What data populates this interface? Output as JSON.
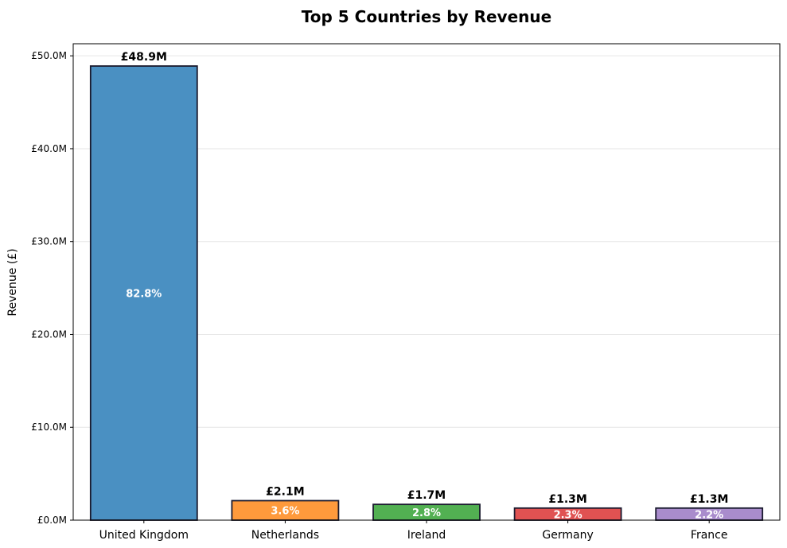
{
  "chart_data": {
    "type": "bar",
    "title": "Top 5 Countries by Revenue",
    "xlabel": "",
    "ylabel": "Revenue (£)",
    "categories": [
      "United Kingdom",
      "Netherlands",
      "Ireland",
      "Germany",
      "France"
    ],
    "values": [
      48.9,
      2.1,
      1.7,
      1.3,
      1.3
    ],
    "value_labels": [
      "£48.9M",
      "£2.1M",
      "£1.7M",
      "£1.3M",
      "£1.3M"
    ],
    "percent_labels": [
      "82.8%",
      "3.6%",
      "2.8%",
      "2.3%",
      "2.2%"
    ],
    "colors": [
      "#4a90c2",
      "#ff9a3c",
      "#52b052",
      "#e05252",
      "#a98ccc"
    ],
    "ylim": [
      0,
      51.3
    ],
    "yticks": [
      0,
      10,
      20,
      30,
      40,
      50
    ],
    "ytick_labels": [
      "£0.0M",
      "£10.0M",
      "£20.0M",
      "£30.0M",
      "£40.0M",
      "£50.0M"
    ],
    "grid": "y",
    "legend": "none"
  }
}
